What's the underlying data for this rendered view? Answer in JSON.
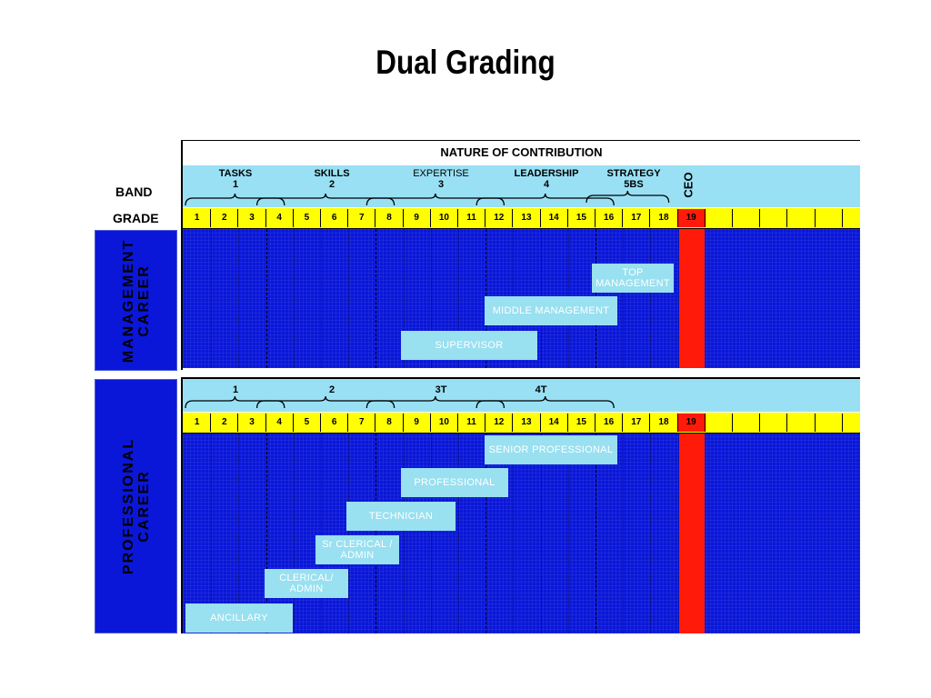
{
  "title": "Dual Grading",
  "side_labels": {
    "band": "BAND",
    "grade": "GRADE"
  },
  "nature_of_contribution": "NATURE OF CONTRIBUTION",
  "management_band_labels": [
    {
      "name": "TASKS",
      "num": "1"
    },
    {
      "name": "SKILLS",
      "num": "2"
    },
    {
      "name": "EXPERTISE",
      "num": "3"
    },
    {
      "name": "LEADERSHIP",
      "num": "4"
    },
    {
      "name": "STRATEGY",
      "num": "5BS"
    }
  ],
  "ceo_label": "CEO",
  "grades": [
    "1",
    "2",
    "3",
    "4",
    "5",
    "6",
    "7",
    "8",
    "9",
    "10",
    "11",
    "12",
    "13",
    "14",
    "15",
    "16",
    "17",
    "18",
    "19"
  ],
  "management_career": {
    "label_line1": "MANAGEMENT",
    "label_line2": "CAREER",
    "roles": [
      "TOP MANAGEMENT",
      "MIDDLE MANAGEMENT",
      "SUPERVISOR"
    ]
  },
  "professional_band_labels": [
    "1",
    "2",
    "3T",
    "4T"
  ],
  "professional_career": {
    "label_line1": "PROFESSIONAL",
    "label_line2": "CAREER",
    "roles": [
      "SENIOR PROFESSIONAL",
      "PROFESSIONAL",
      "TECHNICIAN",
      "Sr CLERICAL / ADMIN",
      "CLERICAL/ ADMIN",
      "ANCILLARY"
    ]
  },
  "colors": {
    "panel": "#0a17d8",
    "band": "#99e0f5",
    "grade": "#ffff00",
    "ceo": "#ff1a0a",
    "role_box": "#99e0f0"
  }
}
